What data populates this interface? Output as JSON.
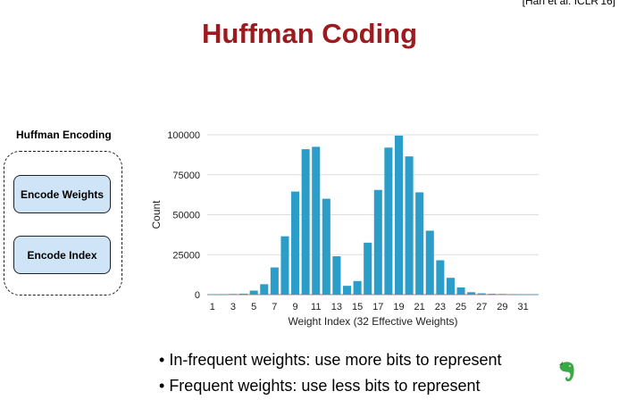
{
  "citation": "[Han et al. ICLR'16]",
  "title": "Huffman Coding",
  "panel": {
    "heading": "Huffman Encoding",
    "buttons": [
      "Encode Weights",
      "Encode Index"
    ],
    "fill_color": "#cfe4f7"
  },
  "bullets": [
    "In-frequent weights: use more bits to represent",
    "Frequent weights: use less bits to represent"
  ],
  "icons": {
    "evernote": "evernote-elephant-icon"
  },
  "colors": {
    "title": "#9b1b1f",
    "bar": "#2a9dc8"
  },
  "chart_data": {
    "type": "bar",
    "xlabel": "Weight Index (32 Effective Weights)",
    "ylabel": "Count",
    "ylim": [
      0,
      100000
    ],
    "yticks": [
      0,
      25000,
      50000,
      75000,
      100000
    ],
    "ytick_labels": [
      "0",
      "25000",
      "50000",
      "75000",
      "100000"
    ],
    "categories": [
      1,
      2,
      3,
      4,
      5,
      6,
      7,
      8,
      9,
      10,
      11,
      12,
      13,
      14,
      15,
      16,
      17,
      18,
      19,
      20,
      21,
      22,
      23,
      24,
      25,
      26,
      27,
      28,
      29,
      30,
      31,
      32
    ],
    "xtick_labels": [
      "1",
      "3",
      "5",
      "7",
      "9",
      "11",
      "13",
      "15",
      "17",
      "19",
      "21",
      "23",
      "25",
      "27",
      "29",
      "31"
    ],
    "values": [
      200,
      300,
      400,
      600,
      2500,
      6500,
      17000,
      36500,
      64500,
      91000,
      92500,
      60000,
      24000,
      5500,
      8500,
      32500,
      65500,
      92000,
      99500,
      86500,
      64000,
      40000,
      21500,
      10500,
      4500,
      1500,
      800,
      500,
      400,
      300,
      200,
      100
    ],
    "grid": true,
    "color": "#2a9dc8"
  }
}
